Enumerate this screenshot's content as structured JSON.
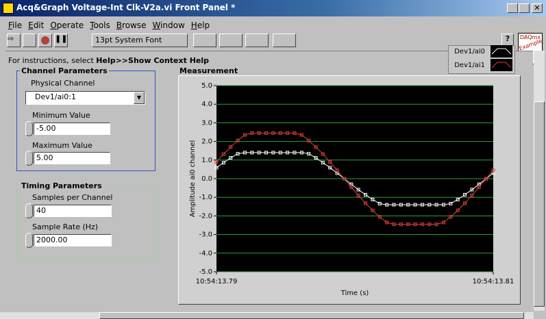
{
  "window": {
    "title": "Acq&Graph Voltage-Int Clk-V2a.vi Front Panel *"
  },
  "menu": [
    "File",
    "Edit",
    "Operate",
    "Tools",
    "Browse",
    "Window",
    "Help"
  ],
  "toolbar": {
    "font": "13pt System Font"
  },
  "badge": {
    "line1": "DAQmx",
    "line2": "Example"
  },
  "instructions": {
    "prefix": "For instructions, select",
    "emphasis": "Help>>Show Context Help"
  },
  "channel_parameters": {
    "title": "Channel Parameters",
    "physical_channel_label": "Physical Channel",
    "physical_channel": "Dev1/ai0:1",
    "minimum_label": "Minimum Value",
    "minimum": "-5.00",
    "maximum_label": "Maximum Value",
    "maximum": "5.00"
  },
  "timing_parameters": {
    "title": "Timing Parameters",
    "samples_label": "Samples per Channel",
    "samples": "40",
    "rate_label": "Sample Rate (Hz)",
    "rate": "2000.00"
  },
  "chart_data": {
    "type": "line",
    "title": "Measurement",
    "x_label": "Time (s)",
    "y_label": "Amplitude ai0 channel",
    "series": [
      {
        "name": "Dev1/ai0",
        "color": "#ffffff",
        "values": [
          0.59,
          0.86,
          1.12,
          1.34,
          1.4,
          1.4,
          1.4,
          1.4,
          1.4,
          1.4,
          1.4,
          1.4,
          1.4,
          1.34,
          1.12,
          0.86,
          0.59,
          0.3,
          0,
          -0.3,
          -0.59,
          -0.86,
          -1.12,
          -1.34,
          -1.4,
          -1.4,
          -1.4,
          -1.4,
          -1.4,
          -1.4,
          -1.4,
          -1.4,
          -1.4,
          -1.34,
          -1.12,
          -0.86,
          -0.59,
          -0.3,
          0,
          0.3
        ]
      },
      {
        "name": "Dev1/ai1",
        "color": "#e0403c",
        "values": [
          0.9,
          1.32,
          1.7,
          2.05,
          2.35,
          2.45,
          2.45,
          2.45,
          2.45,
          2.45,
          2.45,
          2.45,
          2.35,
          2.05,
          1.7,
          1.32,
          0.9,
          0.45,
          0,
          -0.45,
          -0.9,
          -1.32,
          -1.7,
          -2.05,
          -2.35,
          -2.45,
          -2.45,
          -2.45,
          -2.45,
          -2.45,
          -2.45,
          -2.45,
          -2.35,
          -2.05,
          -1.7,
          -1.32,
          -0.9,
          -0.45,
          0,
          0.45
        ]
      }
    ],
    "xlim": [
      0,
      39
    ],
    "xticks": [
      {
        "value": 0,
        "label": "10:54:13.79"
      },
      {
        "value": 39,
        "label": "10:54:13.81"
      }
    ],
    "ylim": [
      -5,
      5
    ],
    "yticks": [
      {
        "value": 5,
        "label": "5.0"
      },
      {
        "value": 4,
        "label": "4.0"
      },
      {
        "value": 3,
        "label": "3.0"
      },
      {
        "value": 2,
        "label": "2.0"
      },
      {
        "value": 1,
        "label": "1.0"
      },
      {
        "value": 0,
        "label": "0.0"
      },
      {
        "value": -1,
        "label": "-1.0"
      },
      {
        "value": -2,
        "label": "-2.0"
      },
      {
        "value": -3,
        "label": "-3.0"
      },
      {
        "value": -4,
        "label": "-4.0"
      },
      {
        "value": -5,
        "label": "-5.0"
      }
    ],
    "grid": true,
    "grid_color": "#2fa03a",
    "plot_background": "#000000"
  }
}
